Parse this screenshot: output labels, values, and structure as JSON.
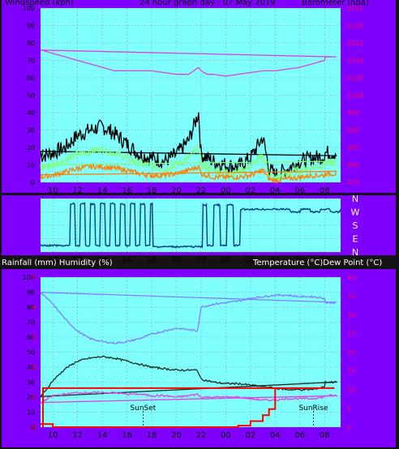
{
  "header": {
    "left": "Windspeed (kph)",
    "center": "24 hour graph day : 07 May 2019",
    "right": "Barometer (hpa)"
  },
  "header2": {
    "left": "Rainfall (mm)  Humidity (%)",
    "right": "Temperature (°C)Dew Point (°C)"
  },
  "colors": {
    "frame": "#8000ff",
    "plot_bg": "#80ffff",
    "wind_gust": "#000000",
    "wind_avg": "#80ff80",
    "wind_low": "#ff8000",
    "barometer": "#e040e0",
    "direction": "#004080",
    "temperature": "#103020",
    "humidity": "#8080ff",
    "dewpoint": "#e040e0",
    "rain": "#ff0000",
    "axis_left": "#000000",
    "axis_right": "#ff0060"
  },
  "chart_data": [
    {
      "type": "line",
      "id": "wind-baro",
      "x_ticks": [
        "10",
        "12",
        "14",
        "16",
        "18",
        "20",
        "22",
        "00",
        "02",
        "04",
        "06",
        "08"
      ],
      "ylim_left": [
        0,
        100
      ],
      "y_ticks_left": [
        0,
        10,
        20,
        30,
        40,
        50,
        60,
        70,
        80,
        90,
        100
      ],
      "ylim_right": [
        975,
        1025
      ],
      "y_ticks_right": [
        975,
        980,
        985,
        990,
        995,
        1000,
        1005,
        1010,
        1015,
        1020,
        1025
      ],
      "series": [
        {
          "axis": "right",
          "x": [
            9,
            10,
            11,
            12,
            13,
            14,
            15,
            16,
            17,
            18,
            19,
            20,
            21,
            21.8,
            22,
            22.5,
            23,
            0,
            1,
            2,
            3,
            4,
            5,
            6,
            7,
            8,
            9.2
          ],
          "values": [
            1013,
            1012,
            1011,
            1010,
            1009,
            1008,
            1007,
            1007,
            1007,
            1007,
            1006.5,
            1006,
            1006,
            1008,
            1007,
            1006,
            1006,
            1005.5,
            1006,
            1006.5,
            1007,
            1007,
            1007.5,
            1008,
            1009,
            1010,
            1011
          ]
        },
        {
          "x": [
            9,
            10,
            11,
            12,
            13,
            14,
            15,
            16,
            17,
            18,
            19,
            20,
            21,
            21.8,
            22,
            23,
            0,
            1,
            2,
            3,
            3.5,
            4,
            5,
            6,
            7,
            8,
            9.2
          ],
          "values": [
            15,
            17,
            20,
            27,
            30,
            32,
            28,
            22,
            16,
            14,
            12,
            16,
            24,
            40,
            16,
            12,
            10,
            9,
            14,
            26,
            8,
            4,
            8,
            12,
            14,
            15,
            17
          ]
        },
        {
          "x": [
            9,
            10,
            11,
            12,
            13,
            14,
            15,
            16,
            17,
            18,
            19,
            20,
            21,
            21.8,
            22,
            23,
            0,
            1,
            2,
            3,
            3.5,
            4,
            5,
            6,
            7,
            8,
            9.2
          ],
          "values": [
            8,
            10,
            13,
            16,
            18,
            19,
            17,
            14,
            11,
            9,
            8,
            10,
            14,
            20,
            10,
            7,
            6,
            6,
            9,
            15,
            5,
            2,
            5,
            7,
            9,
            10,
            11
          ]
        },
        {
          "x": [
            9,
            10,
            11,
            12,
            13,
            14,
            15,
            16,
            17,
            18,
            19,
            20,
            21,
            21.8,
            22,
            23,
            0,
            1,
            2,
            3,
            3.5,
            4,
            5,
            6,
            7,
            8,
            9.2
          ],
          "values": [
            3,
            4,
            6,
            8,
            9,
            9,
            8,
            7,
            5,
            4,
            4,
            5,
            7,
            9,
            5,
            3,
            3,
            3,
            4,
            7,
            2,
            1,
            2,
            3,
            4,
            4,
            5
          ]
        }
      ]
    },
    {
      "type": "line",
      "id": "wind-direction",
      "x_ticks": [
        "10",
        "12",
        "14",
        "16",
        "18",
        "20",
        "22",
        "00",
        "02",
        "04",
        "06",
        "08"
      ],
      "y_ticks_right": [
        "N",
        "W",
        "S",
        "E",
        "N"
      ]
    },
    {
      "type": "line",
      "id": "temp-hum-rain",
      "x_ticks": [
        "10",
        "12",
        "14",
        "16",
        "18",
        "20",
        "22",
        "00",
        "02",
        "04",
        "06",
        "08"
      ],
      "ylim_left": [
        0,
        100
      ],
      "y_ticks_left": [
        0,
        10,
        20,
        30,
        40,
        50,
        60,
        70,
        80,
        90,
        100
      ],
      "ylim_right": [
        0,
        40
      ],
      "y_ticks_right": [
        0,
        5,
        10,
        15,
        20,
        25,
        30,
        35,
        40
      ],
      "ylim_rain": [
        0,
        5
      ],
      "y_ticks_rain": [
        0,
        1,
        2,
        3,
        4,
        5
      ],
      "annotations": [
        {
          "label": "SunSet",
          "x": 17.3
        },
        {
          "label": "SunRise",
          "x": 7.1
        }
      ],
      "series": [
        {
          "x": [
            9,
            10,
            11,
            12,
            13,
            14,
            15,
            16,
            17,
            18,
            19,
            20,
            21,
            21.7,
            22,
            23,
            0,
            1,
            2,
            3,
            4,
            5,
            6,
            7,
            8,
            9.2
          ],
          "values": [
            90,
            82,
            72,
            64,
            59,
            57,
            56,
            57,
            59,
            62,
            64,
            66,
            65,
            64,
            80,
            82,
            83,
            84,
            86,
            87,
            88,
            88,
            87,
            87,
            86,
            83
          ]
        },
        {
          "x": [
            9,
            10,
            11,
            12,
            13,
            14,
            15,
            16,
            17,
            18,
            19,
            20,
            21,
            21.7,
            22,
            23,
            0,
            1,
            2,
            3,
            4,
            5,
            6,
            7,
            8,
            9.2
          ],
          "values": [
            20,
            31,
            39,
            44,
            46,
            47,
            46,
            44,
            42,
            40,
            39,
            38,
            38,
            38,
            32,
            30,
            29,
            29,
            28,
            27,
            26,
            25,
            25,
            25,
            27,
            30
          ]
        },
        {
          "x": [
            9,
            10,
            11,
            12,
            13,
            14,
            15,
            16,
            17,
            18,
            19,
            20,
            21,
            21.7,
            22,
            23,
            0,
            1,
            2,
            3,
            4,
            5,
            6,
            7,
            8,
            9.2
          ],
          "values": [
            16,
            21,
            22,
            23,
            23,
            23,
            23,
            22,
            22,
            21,
            21,
            20,
            21,
            22,
            20,
            20,
            20,
            20,
            19,
            18,
            18,
            19,
            19,
            19,
            20,
            21
          ]
        },
        {
          "x": [
            9,
            10,
            11,
            12,
            13,
            14,
            15,
            16,
            17,
            18,
            19,
            20,
            21,
            22,
            23,
            0,
            1,
            2,
            3,
            3.5,
            4,
            5,
            6,
            7,
            8,
            8.8,
            9.2
          ],
          "values": [
            0.1,
            0,
            0,
            0,
            0,
            0,
            0,
            0,
            0,
            0,
            0,
            0,
            0,
            0,
            0,
            0,
            0.05,
            0.2,
            0.4,
            0.6,
            1.3,
            1.3,
            1.3,
            1.3,
            1.3,
            1.3,
            0
          ]
        }
      ]
    }
  ]
}
